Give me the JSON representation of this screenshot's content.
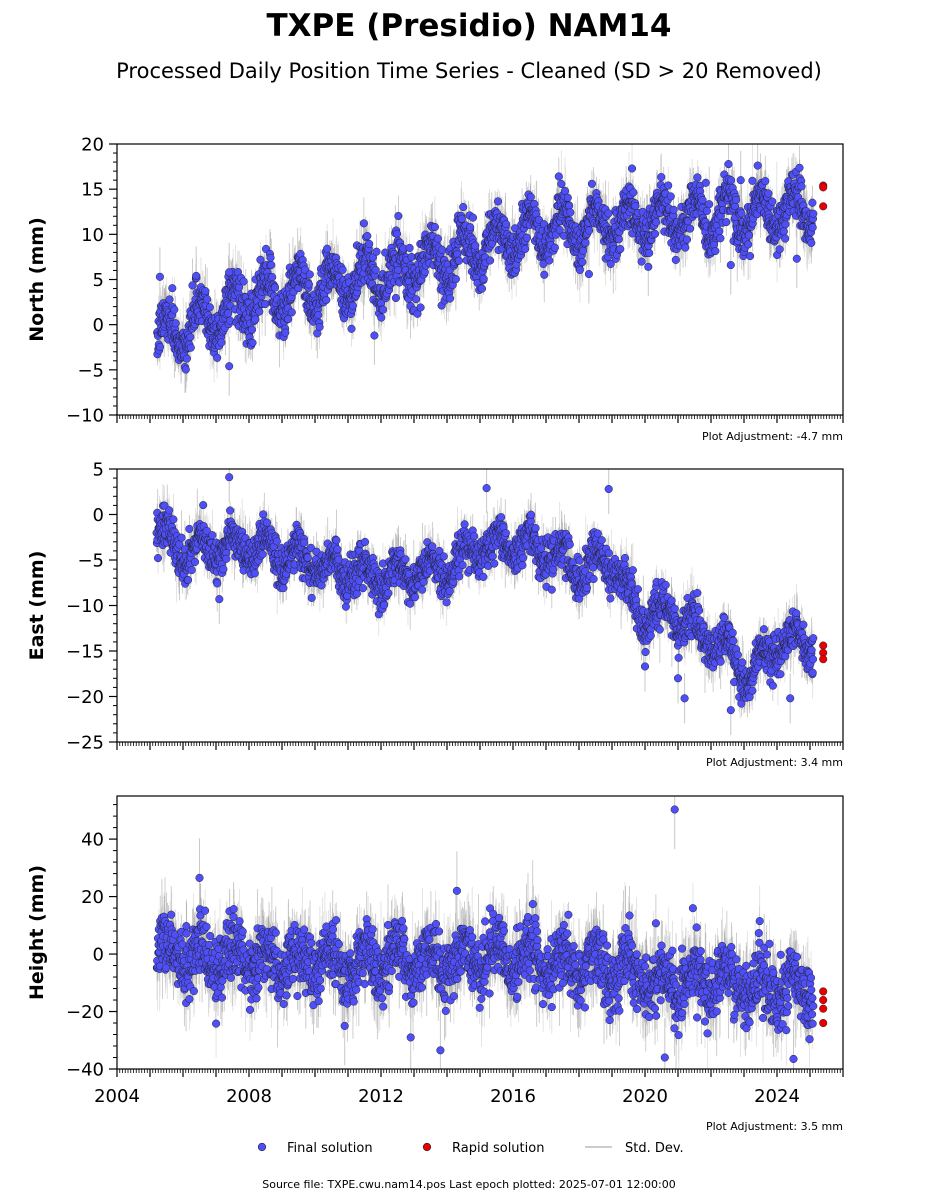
{
  "header": {
    "title": "TXPE (Presidio) NAM14",
    "subtitle": "Processed Daily Position Time Series - Cleaned (SD > 20 Removed)"
  },
  "colors": {
    "final": "#4f4ff7",
    "rapid": "#e60000",
    "std": "#bdbdbd",
    "edge": "#222233"
  },
  "legend": {
    "final_label": "Final solution",
    "rapid_label": "Rapid solution",
    "std_label": "Std. Dev."
  },
  "footer": {
    "source": "Source file: TXPE.cwu.nam14.pos  Last epoch plotted: 2025-07-01 12:00:00"
  },
  "chart_data": [
    {
      "type": "scatter",
      "component": "north",
      "ylabel": "North (mm)",
      "ylim": [
        -10,
        20
      ],
      "yticks": [
        -10,
        -5,
        0,
        5,
        10,
        15,
        20
      ],
      "xlim": [
        2004,
        2026
      ],
      "adjustment": "Plot Adjustment: -4.7 mm",
      "trend": {
        "x": [
          2005.2,
          2008,
          2010,
          2012,
          2013.8,
          2016,
          2018,
          2020,
          2022,
          2025
        ],
        "y": [
          -1.5,
          2.5,
          4,
          5.5,
          7,
          10,
          11,
          11.5,
          12,
          13
        ]
      },
      "seasonal_amp": 2.2,
      "noise": 1.3,
      "outliers": [
        [
          2005.3,
          5.3
        ],
        [
          2006.4,
          5.4
        ],
        [
          2007.4,
          5.8
        ],
        [
          2007.4,
          -4.6
        ],
        [
          2011.8,
          -1.2
        ],
        [
          2018.3,
          5.6
        ],
        [
          2020.1,
          6.4
        ],
        [
          2022.6,
          6.6
        ],
        [
          2024.6,
          7.3
        ],
        [
          2022.9,
          16
        ]
      ],
      "rapid": [
        [
          2025.4,
          15.4
        ],
        [
          2025.4,
          15.2
        ],
        [
          2025.4,
          13.1
        ]
      ]
    },
    {
      "type": "scatter",
      "component": "east",
      "ylabel": "East (mm)",
      "ylim": [
        -25,
        5
      ],
      "yticks": [
        -25,
        -20,
        -15,
        -10,
        -5,
        0,
        5
      ],
      "xlim": [
        2004,
        2026
      ],
      "adjustment": "Plot Adjustment: 3.4 mm",
      "trend": {
        "x": [
          2005.2,
          2006,
          2008,
          2010,
          2012,
          2014,
          2015,
          2016.5,
          2018,
          2019,
          2019.8,
          2021,
          2022.5,
          2023.2,
          2024,
          2025
        ],
        "y": [
          -2,
          -4,
          -3.5,
          -5.5,
          -7,
          -6,
          -3.5,
          -3,
          -6,
          -5,
          -11,
          -11,
          -15,
          -18,
          -14,
          -14
        ]
      },
      "seasonal_amp": 1.5,
      "noise": 1.1,
      "outliers": [
        [
          2007.4,
          4.1
        ],
        [
          2015.2,
          2.9
        ],
        [
          2018.9,
          2.8
        ],
        [
          2007.1,
          -9.3
        ],
        [
          2021.2,
          -20.2
        ],
        [
          2022.6,
          -21.5
        ],
        [
          2024.4,
          -20.2
        ],
        [
          2020.0,
          -16.7
        ],
        [
          2021.0,
          -18
        ]
      ],
      "rapid": [
        [
          2025.4,
          -14.4
        ],
        [
          2025.4,
          -15.2
        ],
        [
          2025.4,
          -15.9
        ]
      ]
    },
    {
      "type": "scatter",
      "component": "height",
      "ylabel": "Height (mm)",
      "ylim": [
        -40,
        55
      ],
      "yticks": [
        -40,
        -20,
        0,
        20,
        40
      ],
      "xlim": [
        2004,
        2026
      ],
      "xticks": [
        2004,
        2008,
        2012,
        2016,
        2020,
        2024
      ],
      "adjustment": "Plot Adjustment: 3.5 mm",
      "trend": {
        "x": [
          2005.2,
          2008,
          2012,
          2016,
          2019,
          2020.5,
          2022,
          2025
        ],
        "y": [
          0,
          -2,
          -3,
          -1,
          -5,
          -10,
          -10,
          -12
        ]
      },
      "seasonal_amp": 5,
      "noise": 5.5,
      "outliers": [
        [
          2020.9,
          50.3
        ],
        [
          2006.5,
          26.5
        ],
        [
          2014.3,
          22
        ],
        [
          2013.8,
          -33.5
        ],
        [
          2020.6,
          -36
        ],
        [
          2024.5,
          -36.5
        ],
        [
          2010.9,
          -25
        ],
        [
          2012.9,
          -29
        ]
      ],
      "rapid": [
        [
          2025.4,
          -13
        ],
        [
          2025.4,
          -16
        ],
        [
          2025.4,
          -19
        ],
        [
          2025.4,
          -24
        ]
      ]
    }
  ]
}
